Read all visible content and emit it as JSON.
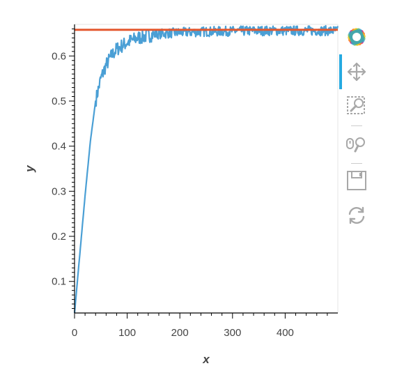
{
  "chart_data": {
    "type": "line",
    "title": "",
    "xlabel": "x",
    "ylabel": "y",
    "xlim": [
      0,
      500
    ],
    "ylim": [
      0.03,
      0.67
    ],
    "x_ticks": [
      0,
      100,
      200,
      300,
      400
    ],
    "x_tick_labels": [
      "0",
      "100",
      "200",
      "300",
      "400"
    ],
    "y_ticks": [
      0.1,
      0.2,
      0.3,
      0.4,
      0.5,
      0.6
    ],
    "y_tick_labels": [
      "0.1",
      "0.2",
      "0.3",
      "0.4",
      "0.5",
      "0.6"
    ],
    "grid": false,
    "series": [
      {
        "color": "#4a9fd5",
        "shape": "noisy saturating curve",
        "x": [
          0,
          10,
          20,
          30,
          40,
          50,
          60,
          70,
          80,
          100,
          120,
          150,
          200,
          250,
          300,
          350,
          400,
          450,
          500
        ],
        "values": [
          0.03,
          0.16,
          0.29,
          0.41,
          0.5,
          0.55,
          0.58,
          0.6,
          0.615,
          0.63,
          0.64,
          0.648,
          0.652,
          0.654,
          0.655,
          0.656,
          0.656,
          0.656,
          0.656
        ]
      },
      {
        "color": "#e4572e",
        "shape": "horizontal reference line",
        "x": [
          0,
          500
        ],
        "values": [
          0.658,
          0.658
        ]
      }
    ]
  },
  "toolbar": {
    "tools": [
      {
        "name": "bokeh-logo-icon",
        "label": "Bokeh"
      },
      {
        "name": "pan-tool-icon",
        "label": "Pan"
      },
      {
        "name": "box-zoom-tool-icon",
        "label": "Box Zoom"
      },
      {
        "name": "wheel-zoom-tool-icon",
        "label": "Wheel Zoom"
      },
      {
        "name": "save-tool-icon",
        "label": "Save"
      },
      {
        "name": "reset-tool-icon",
        "label": "Reset"
      }
    ],
    "active_color": "#26aae1",
    "icon_color": "#b0b0b0"
  }
}
